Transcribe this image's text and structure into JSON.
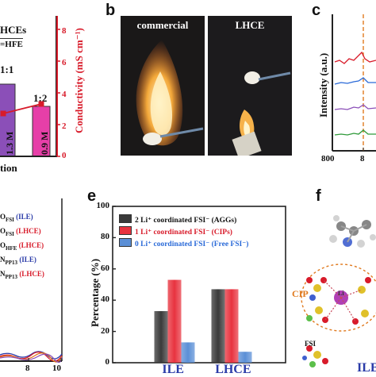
{
  "panels": {
    "a": {
      "letter": "",
      "legend_line1": "HCEs",
      "legend_line2": "=HFE",
      "ratio_1": "1:1",
      "ratio_2": "1:2",
      "bar_label_1": "1.3 M",
      "bar_label_2": "0.9 M",
      "xlabel_fragment": "tion",
      "ylabel_right": "Conductivity (mS cm⁻¹)",
      "right_ticks": [
        "8",
        "6",
        "4",
        "2",
        "0"
      ]
    },
    "b": {
      "letter": "b",
      "photo_left_label": "commercial",
      "photo_right_label": "LHCE"
    },
    "c": {
      "letter": "c",
      "ylabel": "Intensity (a.u.)",
      "x_ticks": [
        "800",
        "8"
      ]
    },
    "d": {
      "letter": "",
      "legend": [
        {
          "text": "O",
          "sub": "FSI",
          "tag": "(ILE)",
          "color": "#2a3ba8"
        },
        {
          "text": "O",
          "sub": "FSI",
          "tag": "(LHCE)",
          "color": "#d81b2a"
        },
        {
          "text": "O",
          "sub": "HFE",
          "tag": "(LHCE)",
          "color": "#d81b2a"
        },
        {
          "text": "N",
          "sub": "PP13",
          "tag": "(ILE)",
          "color": "#2a3ba8"
        },
        {
          "text": "N",
          "sub": "PP13",
          "tag": "(LHCE)",
          "color": "#d81b2a"
        }
      ],
      "x_ticks": [
        "8",
        "10"
      ]
    },
    "e": {
      "letter": "e",
      "ylabel": "Percentage (%)"
    },
    "f": {
      "letter": "f",
      "cip_label": "CIP",
      "fsi_label": "FSI",
      "li_label": "Li",
      "ile_label": "ILE"
    }
  },
  "colors": {
    "red": "#d81b2a",
    "blue": "#2a3ba8",
    "purple": "#8b4fb8",
    "pink": "#e63fa8",
    "orange": "#e07a1f"
  },
  "chart_data": [
    {
      "type": "bar",
      "panel": "a",
      "categories": [
        "1:1",
        "1:2"
      ],
      "series": [
        {
          "name": "",
          "values": [
            1.3,
            0.9
          ],
          "unit": "M"
        },
        {
          "name": "Conductivity (mS cm⁻¹)",
          "values": [
            2.7,
            3.3
          ]
        }
      ],
      "ylabel": "Conductivity (mS cm⁻¹)",
      "ylim": [
        0,
        8
      ]
    },
    {
      "type": "bar",
      "panel": "e",
      "categories": [
        "ILE",
        "LHCE"
      ],
      "series": [
        {
          "name": "2 Li⁺ coordinated FSI⁻ (AGGs)",
          "values": [
            33,
            47
          ],
          "color": "#3a3a3a"
        },
        {
          "name": "1 Li⁺ coordinated FSI⁻ (CIPs)",
          "values": [
            53,
            47
          ],
          "color": "#e8333f"
        },
        {
          "name": "0 Li⁺ coordinated FSI⁻ (Free FSI⁻)",
          "values": [
            13,
            7
          ],
          "color": "#5b8fd6"
        }
      ],
      "title": "",
      "xlabel": "",
      "ylabel": "Percentage (%)",
      "ylim": [
        0,
        100
      ],
      "yticks": [
        "0",
        "20",
        "40",
        "60",
        "80",
        "100"
      ],
      "grid": false,
      "legend_position": "top-left"
    }
  ]
}
